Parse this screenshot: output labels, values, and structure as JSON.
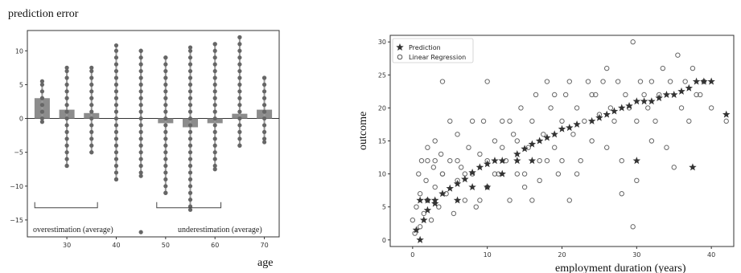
{
  "chart_data": [
    {
      "type": "bar",
      "title": "prediction error",
      "xlabel": "age",
      "ylabel": "",
      "x": [
        25,
        30,
        35,
        40,
        45,
        50,
        55,
        60,
        65,
        70
      ],
      "xticks": [
        30,
        40,
        50,
        60,
        70
      ],
      "yticks": [
        -15,
        -10,
        -5,
        0,
        5,
        10
      ],
      "xlim": [
        22,
        73
      ],
      "ylim": [
        -17.5,
        13
      ],
      "grid": false,
      "series": [
        {
          "values": [
            3.0,
            1.3,
            0.8,
            0.0,
            0.0,
            -0.7,
            -1.3,
            -0.7,
            0.7,
            1.3
          ]
        }
      ],
      "point_ranges": [
        {
          "x": 25,
          "min": -0.5,
          "max": 5.5
        },
        {
          "x": 30,
          "min": -7.0,
          "max": 7.5
        },
        {
          "x": 35,
          "min": -5.0,
          "max": 7.5
        },
        {
          "x": 40,
          "min": -9.0,
          "max": 10.8
        },
        {
          "x": 45,
          "min": -8.5,
          "max": 10.0
        },
        {
          "x": 50,
          "min": -11.0,
          "max": 9.0
        },
        {
          "x": 55,
          "min": -13.5,
          "max": 10.5
        },
        {
          "x": 60,
          "min": -7.5,
          "max": 11.0
        },
        {
          "x": 65,
          "min": -4.0,
          "max": 12.0
        },
        {
          "x": 70,
          "min": -3.5,
          "max": 6.0
        }
      ],
      "outliers": [
        {
          "x": 45,
          "y": -16.8
        }
      ],
      "bar_color": "#8c8c8c",
      "point_color": "#666666",
      "annotations": [
        {
          "text": "overestimation (average)",
          "x_start": 23.5,
          "x_end": 36.2,
          "y": -13.2
        },
        {
          "text": "underestimation (average)",
          "x_start": 48.2,
          "x_end": 61.2,
          "y": -13.2
        }
      ]
    },
    {
      "type": "scatter",
      "title": "",
      "xlabel": "employment duration (years)",
      "ylabel": "outcome",
      "xticks": [
        0,
        10,
        20,
        30,
        40
      ],
      "yticks": [
        0,
        5,
        10,
        15,
        20,
        25,
        30
      ],
      "xlim": [
        -3,
        43
      ],
      "ylim": [
        -1,
        31
      ],
      "legend": "top-left",
      "grid": false,
      "series": [
        {
          "name": "Prediction",
          "marker": "star",
          "color": "#333333",
          "points": [
            [
              0.5,
              1.5
            ],
            [
              1,
              0.0
            ],
            [
              1.5,
              3.0
            ],
            [
              2,
              4.5
            ],
            [
              3,
              5.5
            ],
            [
              4,
              7.0
            ],
            [
              5,
              7.8
            ],
            [
              6,
              8.5
            ],
            [
              7,
              9.2
            ],
            [
              8,
              10.2
            ],
            [
              9,
              11.0
            ],
            [
              10,
              11.5
            ],
            [
              11,
              12.0
            ],
            [
              12,
              12.0
            ],
            [
              14,
              13.0
            ],
            [
              15,
              13.8
            ],
            [
              16,
              14.5
            ],
            [
              17,
              15.0
            ],
            [
              18,
              15.5
            ],
            [
              19,
              16.0
            ],
            [
              20,
              16.8
            ],
            [
              21,
              17.0
            ],
            [
              22,
              17.5
            ],
            [
              24,
              18.0
            ],
            [
              25,
              18.5
            ],
            [
              26,
              19.0
            ],
            [
              27,
              19.5
            ],
            [
              28,
              20.0
            ],
            [
              29,
              20.3
            ],
            [
              30,
              21.0
            ],
            [
              31,
              21.0
            ],
            [
              32,
              21.0
            ],
            [
              33,
              21.5
            ],
            [
              34,
              22.0
            ],
            [
              35,
              22.0
            ],
            [
              36,
              22.5
            ],
            [
              37,
              23.0
            ],
            [
              38,
              24.0
            ],
            [
              39,
              24.0
            ],
            [
              40,
              24.0
            ],
            [
              37.5,
              11.0
            ],
            [
              30,
              12.0
            ],
            [
              42,
              19.0
            ],
            [
              1,
              6.0
            ],
            [
              2,
              6.0
            ],
            [
              3,
              6.0
            ],
            [
              6,
              6.0
            ],
            [
              8,
              8.0
            ],
            [
              10,
              8.0
            ],
            [
              12,
              10.0
            ],
            [
              14,
              12.0
            ],
            [
              16,
              12.0
            ]
          ]
        },
        {
          "name": "Linear Regression",
          "marker": "circle-open",
          "color": "#666666",
          "points": [
            [
              0,
              3
            ],
            [
              0.3,
              1
            ],
            [
              0.5,
              5
            ],
            [
              0.8,
              10
            ],
            [
              1,
              2
            ],
            [
              1,
              7
            ],
            [
              1.2,
              12
            ],
            [
              1.5,
              4
            ],
            [
              1.8,
              9
            ],
            [
              2,
              6
            ],
            [
              2,
              14
            ],
            [
              2.5,
              3
            ],
            [
              2.8,
              11
            ],
            [
              3,
              8
            ],
            [
              3,
              15
            ],
            [
              3.5,
              5
            ],
            [
              3.8,
              13
            ],
            [
              4,
              24
            ],
            [
              4,
              10
            ],
            [
              4.5,
              7
            ],
            [
              5,
              12
            ],
            [
              5,
              18
            ],
            [
              5.5,
              4
            ],
            [
              6,
              9
            ],
            [
              6,
              16
            ],
            [
              6.5,
              11
            ],
            [
              7,
              6
            ],
            [
              7.5,
              14
            ],
            [
              8,
              10
            ],
            [
              8,
              18
            ],
            [
              8.5,
              5
            ],
            [
              9,
              13
            ],
            [
              9.5,
              18
            ],
            [
              10,
              24
            ],
            [
              10,
              8
            ],
            [
              11,
              15
            ],
            [
              11.5,
              10
            ],
            [
              12,
              18
            ],
            [
              12.5,
              12
            ],
            [
              13,
              6
            ],
            [
              13.5,
              16
            ],
            [
              14,
              10
            ],
            [
              14.5,
              20
            ],
            [
              15,
              8
            ],
            [
              15.5,
              14
            ],
            [
              16,
              18
            ],
            [
              16.5,
              22
            ],
            [
              17,
              12
            ],
            [
              17.5,
              16
            ],
            [
              18,
              24
            ],
            [
              18.5,
              20
            ],
            [
              19,
              14
            ],
            [
              19.5,
              10
            ],
            [
              20,
              18
            ],
            [
              20.5,
              22
            ],
            [
              21,
              24
            ],
            [
              21.5,
              16
            ],
            [
              22,
              20
            ],
            [
              22.5,
              12
            ],
            [
              23,
              18
            ],
            [
              23.5,
              24
            ],
            [
              24,
              15
            ],
            [
              24.5,
              22
            ],
            [
              25,
              19
            ],
            [
              25.5,
              24
            ],
            [
              26,
              26
            ],
            [
              26.5,
              20
            ],
            [
              27,
              18
            ],
            [
              27.5,
              24
            ],
            [
              28,
              12
            ],
            [
              28.5,
              22
            ],
            [
              29,
              20
            ],
            [
              29.5,
              30
            ],
            [
              30,
              18
            ],
            [
              30.5,
              24
            ],
            [
              31,
              22
            ],
            [
              31.5,
              20
            ],
            [
              32,
              24
            ],
            [
              32.5,
              18
            ],
            [
              33,
              22
            ],
            [
              33.5,
              26
            ],
            [
              34,
              14
            ],
            [
              34.5,
              24
            ],
            [
              35,
              11
            ],
            [
              35.5,
              28
            ],
            [
              36,
              20
            ],
            [
              36.5,
              24
            ],
            [
              37,
              18
            ],
            [
              37.5,
              26
            ],
            [
              38,
              22
            ],
            [
              38.5,
              22
            ],
            [
              39,
              24
            ],
            [
              40,
              20
            ],
            [
              42,
              18
            ],
            [
              29.5,
              2
            ],
            [
              2,
              12
            ],
            [
              3,
              12
            ],
            [
              4,
              10
            ],
            [
              6,
              12
            ],
            [
              7,
              10
            ],
            [
              9,
              6
            ],
            [
              10,
              12
            ],
            [
              11,
              10
            ],
            [
              12,
              14
            ],
            [
              13,
              18
            ],
            [
              14,
              15
            ],
            [
              15,
              10
            ],
            [
              16,
              6
            ],
            [
              17,
              9
            ],
            [
              18,
              12
            ],
            [
              19,
              22
            ],
            [
              20,
              12
            ],
            [
              21,
              6
            ],
            [
              22,
              10
            ],
            [
              24,
              22
            ],
            [
              26,
              14
            ],
            [
              28,
              7
            ],
            [
              30,
              9
            ],
            [
              32,
              15
            ]
          ]
        }
      ]
    }
  ]
}
